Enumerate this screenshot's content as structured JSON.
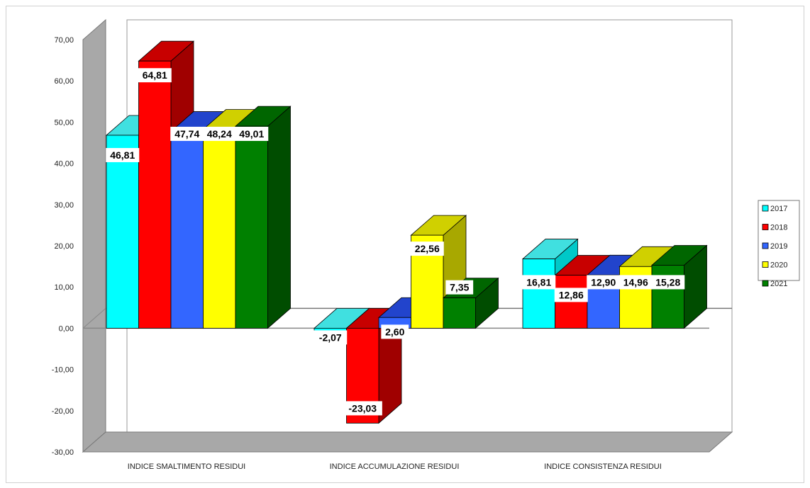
{
  "chart_data": {
    "type": "bar",
    "title": "",
    "xlabel": "",
    "ylabel": "",
    "ylim": [
      -30,
      70
    ],
    "y_ticks": [
      "70,00",
      "60,00",
      "50,00",
      "40,00",
      "30,00",
      "20,00",
      "10,00",
      "0,00",
      "-10,00",
      "-20,00",
      "-30,00"
    ],
    "y_tick_values": [
      70,
      60,
      50,
      40,
      30,
      20,
      10,
      0,
      -10,
      -20,
      -30
    ],
    "categories": [
      "INDICE SMALTIMENTO RESIDUI",
      "INDICE ACCUMULAZIONE RESIDUI",
      "INDICE CONSISTENZA RESIDUI"
    ],
    "series": [
      {
        "name": "2017",
        "values": [
          46.81,
          -2.07,
          16.81
        ],
        "labels": [
          "46,81",
          "-2,07",
          "16,81"
        ],
        "color": "#00ffff",
        "side": "#00c8c8",
        "top": "#40e0e0"
      },
      {
        "name": "2018",
        "values": [
          64.81,
          -23.03,
          12.86
        ],
        "labels": [
          "64,81",
          "-23,03",
          "12,86"
        ],
        "color": "#ff0000",
        "side": "#a00000",
        "top": "#c80000"
      },
      {
        "name": "2019",
        "values": [
          47.74,
          2.6,
          12.9
        ],
        "labels": [
          "47,74",
          "2,60",
          "12,90"
        ],
        "color": "#3366ff",
        "side": "#1a2ea0",
        "top": "#2244cc"
      },
      {
        "name": "2020",
        "values": [
          48.24,
          22.56,
          14.96
        ],
        "labels": [
          "48,24",
          "22,56",
          "14,96"
        ],
        "color": "#ffff00",
        "side": "#a8a800",
        "top": "#d0d000"
      },
      {
        "name": "2021",
        "values": [
          49.01,
          7.35,
          15.28
        ],
        "labels": [
          "49,01",
          "7,35",
          "15,28"
        ],
        "color": "#008000",
        "side": "#004d00",
        "top": "#006600"
      }
    ],
    "grid": false,
    "legend": "right",
    "three_d": true
  }
}
